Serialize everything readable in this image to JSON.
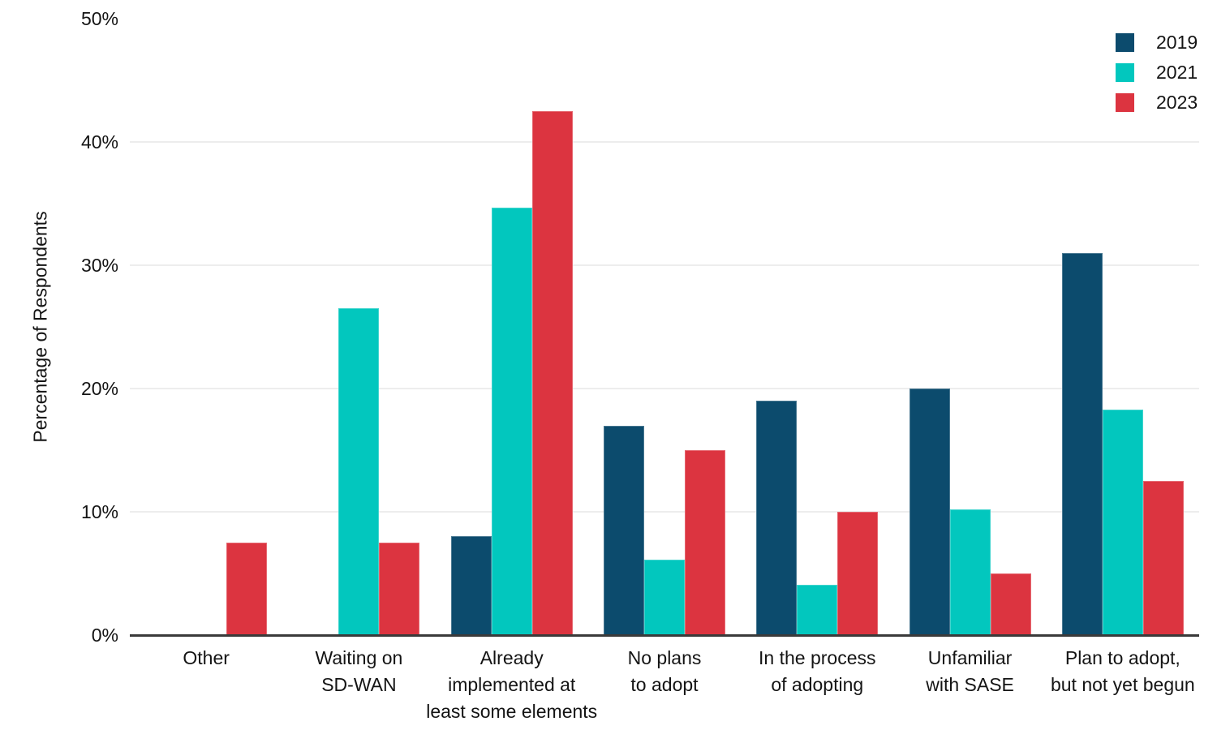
{
  "chart_data": {
    "type": "bar",
    "title": "",
    "xlabel": "",
    "ylabel": "Percentage of Respondents",
    "ylim": [
      0,
      50
    ],
    "yticks": [
      0,
      10,
      20,
      30,
      40,
      50
    ],
    "ytick_labels": [
      "0%",
      "10%",
      "20%",
      "30%",
      "40%",
      "50%"
    ],
    "gridlines_at": [
      10,
      20,
      30,
      40
    ],
    "grid": "horizontal-only",
    "legend_position": "top-right",
    "categories": [
      "Other",
      "Waiting on\nSD-WAN",
      "Already\nimplemented at\nleast some elements",
      "No plans\nto adopt",
      "In the process\nof adopting",
      "Unfamiliar\nwith SASE",
      "Plan to adopt,\nbut not yet begun"
    ],
    "series": [
      {
        "name": "2019",
        "color": "#0C4B6D",
        "values": [
          0,
          0,
          8,
          17,
          19,
          20,
          31
        ]
      },
      {
        "name": "2021",
        "color": "#02C7BE",
        "values": [
          0,
          26.5,
          34.7,
          6.1,
          4.1,
          10.2,
          18.3
        ]
      },
      {
        "name": "2023",
        "color": "#DC3440",
        "values": [
          7.5,
          7.5,
          42.5,
          15,
          10,
          5,
          12.5
        ]
      }
    ],
    "axis_line_color": "#3A3A3A",
    "gridline_color": "#EDEDED",
    "text_color": "#141414"
  }
}
